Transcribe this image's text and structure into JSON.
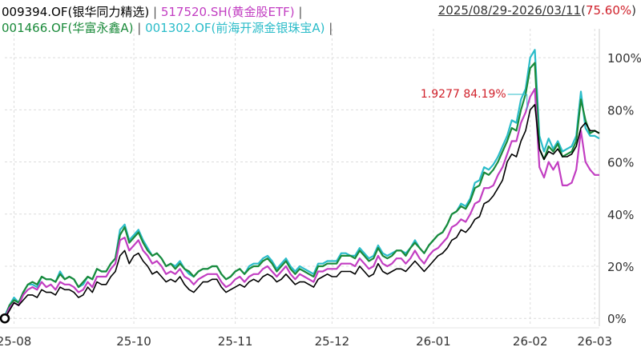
{
  "legend": {
    "items": [
      {
        "code": "009394.OF",
        "name": "银华同力精选",
        "color": "#000000"
      },
      {
        "code": "517520.SH",
        "name": "黄金股ETF",
        "color": "#c23ec2"
      },
      {
        "code": "001466.OF",
        "name": "华富永鑫A",
        "color": "#1a8a3a"
      },
      {
        "code": "001302.OF",
        "name": "前海开源金银珠宝A",
        "color": "#2bbcc9"
      }
    ],
    "separator": "|"
  },
  "range": {
    "dates": "2025/08/29-2026/03/11",
    "open_paren": "(",
    "return": "75.60%",
    "close_paren": ")",
    "return_color": "#d0202a"
  },
  "annotation": {
    "text": "1.9277 84.19%",
    "color": "#d0202a"
  },
  "chart_data": {
    "type": "line",
    "x_labels": [
      "25-08",
      "25-10",
      "25-11",
      "25-12",
      "26-01",
      "26-02",
      "26-03"
    ],
    "y_ticks": [
      "0%",
      "20%",
      "40%",
      "60%",
      "80%",
      "100%"
    ],
    "ylim": [
      -3,
      108
    ],
    "y_tick_values": [
      0,
      20,
      40,
      60,
      80,
      100
    ],
    "n_points": 130,
    "grid": true,
    "series": [
      {
        "name": "009394.OF(银华同力精选)",
        "color": "#000000",
        "values": [
          0,
          3,
          6,
          5,
          7,
          9,
          9,
          8,
          11,
          10,
          10,
          9,
          12,
          11,
          11,
          10,
          8,
          9,
          12,
          10,
          14,
          13,
          13,
          16,
          18,
          24,
          26,
          21,
          24,
          25,
          22,
          20,
          17,
          18,
          16,
          14,
          15,
          14,
          16,
          13,
          11,
          10,
          12,
          14,
          14,
          15,
          15,
          12,
          10,
          11,
          12,
          13,
          12,
          14,
          15,
          14,
          16,
          17,
          16,
          14,
          15,
          17,
          15,
          13,
          14,
          14,
          13,
          12,
          15,
          16,
          17,
          16,
          16,
          18,
          18,
          18,
          17,
          20,
          18,
          16,
          17,
          21,
          18,
          17,
          18,
          19,
          19,
          18,
          20,
          22,
          20,
          18,
          20,
          22,
          24,
          25,
          27,
          30,
          31,
          34,
          33,
          35,
          38,
          39,
          44,
          45,
          47,
          50,
          53,
          60,
          63,
          62,
          68,
          72,
          80,
          82,
          65,
          61,
          64,
          63,
          65,
          62,
          62,
          63,
          66,
          73,
          75,
          72,
          72,
          71
        ]
      },
      {
        "name": "517520.SH(黄金股ETF)",
        "color": "#c23ec2",
        "values": [
          0,
          4,
          6,
          5,
          9,
          11,
          12,
          11,
          14,
          12,
          13,
          11,
          14,
          13,
          13,
          12,
          10,
          11,
          14,
          12,
          16,
          16,
          16,
          19,
          21,
          30,
          31,
          26,
          28,
          30,
          26,
          24,
          21,
          22,
          20,
          17,
          18,
          17,
          19,
          16,
          15,
          13,
          15,
          16,
          17,
          17,
          17,
          14,
          12,
          13,
          15,
          16,
          14,
          16,
          17,
          17,
          19,
          20,
          18,
          16,
          18,
          20,
          17,
          15,
          17,
          16,
          15,
          14,
          18,
          18,
          19,
          19,
          19,
          21,
          21,
          21,
          20,
          23,
          21,
          19,
          20,
          24,
          21,
          20,
          21,
          23,
          23,
          21,
          23,
          26,
          23,
          21,
          24,
          26,
          27,
          29,
          31,
          35,
          36,
          38,
          37,
          40,
          44,
          45,
          50,
          50,
          51,
          55,
          58,
          63,
          68,
          68,
          75,
          79,
          85,
          88,
          58,
          54,
          60,
          57,
          60,
          51,
          51,
          52,
          57,
          72,
          60,
          57,
          55,
          55
        ]
      },
      {
        "name": "001466.OF(华富永鑫A)",
        "color": "#1a8a3a",
        "values": [
          0,
          5,
          7,
          6,
          10,
          13,
          14,
          13,
          16,
          15,
          15,
          14,
          17,
          15,
          16,
          15,
          12,
          14,
          16,
          15,
          19,
          18,
          18,
          21,
          23,
          32,
          35,
          29,
          31,
          33,
          29,
          26,
          24,
          25,
          23,
          20,
          21,
          19,
          21,
          19,
          18,
          16,
          18,
          19,
          19,
          20,
          20,
          17,
          15,
          16,
          18,
          19,
          17,
          19,
          20,
          20,
          22,
          23,
          21,
          18,
          20,
          22,
          19,
          17,
          19,
          18,
          17,
          16,
          20,
          20,
          21,
          21,
          21,
          24,
          24,
          24,
          23,
          26,
          24,
          22,
          23,
          27,
          24,
          23,
          24,
          26,
          26,
          24,
          27,
          29,
          27,
          25,
          28,
          30,
          32,
          33,
          36,
          40,
          41,
          43,
          42,
          45,
          50,
          51,
          56,
          55,
          57,
          60,
          64,
          68,
          73,
          72,
          80,
          86,
          96,
          98,
          65,
          61,
          66,
          64,
          67,
          62,
          63,
          64,
          68,
          84,
          76,
          71,
          72,
          71
        ]
      },
      {
        "name": "001302.OF(前海开源金银珠宝A)",
        "color": "#2bbcc9",
        "values": [
          1,
          5,
          8,
          6,
          10,
          13,
          13,
          12,
          16,
          15,
          15,
          14,
          18,
          15,
          16,
          15,
          12,
          13,
          16,
          15,
          19,
          18,
          18,
          21,
          23,
          34,
          36,
          30,
          32,
          34,
          30,
          27,
          24,
          25,
          23,
          20,
          21,
          20,
          22,
          19,
          17,
          16,
          18,
          19,
          19,
          20,
          20,
          17,
          15,
          16,
          18,
          19,
          17,
          20,
          21,
          21,
          23,
          24,
          22,
          19,
          21,
          23,
          20,
          18,
          20,
          19,
          18,
          17,
          21,
          21,
          22,
          22,
          22,
          25,
          25,
          24,
          24,
          27,
          25,
          23,
          24,
          28,
          25,
          24,
          25,
          26,
          26,
          25,
          27,
          30,
          27,
          25,
          28,
          30,
          32,
          33,
          36,
          40,
          41,
          44,
          43,
          46,
          52,
          53,
          58,
          57,
          59,
          62,
          66,
          70,
          76,
          75,
          84,
          88,
          100,
          103,
          70,
          64,
          69,
          65,
          68,
          64,
          65,
          66,
          70,
          87,
          73,
          70,
          70,
          69
        ]
      }
    ]
  }
}
